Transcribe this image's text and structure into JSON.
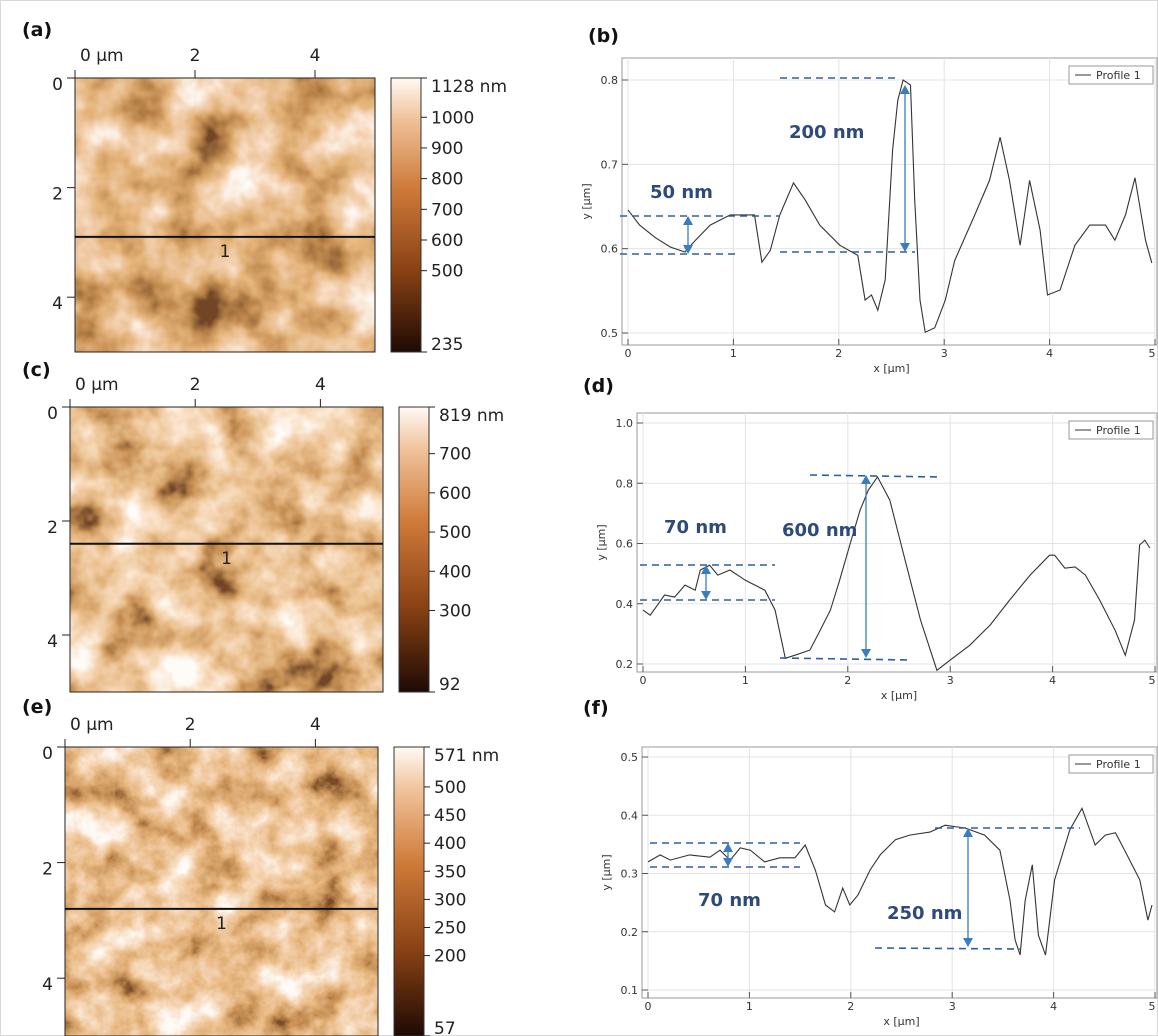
{
  "images": [
    {
      "label": "(a)",
      "xlim": [
        0,
        5
      ],
      "xticks": [
        {
          "value": 0,
          "label": "0 µm"
        },
        2,
        4
      ],
      "ylim": [
        0,
        5
      ],
      "yticks": [
        0,
        2,
        4
      ],
      "profile_y": 2.9,
      "profile_label": "1",
      "clim": [
        235,
        1128
      ],
      "cticks": [
        {
          "value": 1128,
          "label": "1128 nm"
        },
        1000,
        900,
        800,
        700,
        600,
        500,
        235
      ]
    },
    {
      "label": "(c)",
      "xlim": [
        0,
        5
      ],
      "xticks": [
        {
          "value": 0,
          "label": "0 µm"
        },
        2,
        4
      ],
      "ylim": [
        0,
        5
      ],
      "yticks": [
        0,
        2,
        4
      ],
      "profile_y": 2.4,
      "profile_label": "1",
      "clim": [
        92,
        819
      ],
      "cticks": [
        {
          "value": 819,
          "label": "819 nm"
        },
        700,
        600,
        500,
        400,
        300,
        92
      ]
    },
    {
      "label": "(e)",
      "xlim": [
        0,
        5
      ],
      "xticks": [
        {
          "value": 0,
          "label": "0 µm"
        },
        2,
        4
      ],
      "ylim": [
        0,
        5
      ],
      "yticks": [
        0,
        2,
        4
      ],
      "profile_y": 2.8,
      "profile_label": "1",
      "clim": [
        57,
        571
      ],
      "cticks": [
        {
          "value": 571,
          "label": "571 nm"
        },
        500,
        450,
        400,
        350,
        300,
        250,
        200,
        57
      ]
    }
  ],
  "chart_data": [
    {
      "type": "line",
      "label": "(b)",
      "xlabel": "x [µm]",
      "ylabel": "y [µm]",
      "grid": true,
      "legend": "upper right",
      "xlim": [
        0,
        5
      ],
      "xticks": [
        0,
        1,
        2,
        3,
        4,
        5
      ],
      "ylim": [
        0.5,
        0.8
      ],
      "yticks": [
        0.5,
        0.6,
        0.7,
        0.8
      ],
      "annotations": [
        "50 nm",
        "200 nm"
      ],
      "x": [
        0,
        0.11,
        0.26,
        0.4,
        0.54,
        0.64,
        0.78,
        0.97,
        1.2,
        1.27,
        1.35,
        1.44,
        1.57,
        1.68,
        1.82,
        2.01,
        2.18,
        2.25,
        2.31,
        2.37,
        2.44,
        2.51,
        2.56,
        2.61,
        2.68,
        2.72,
        2.77,
        2.82,
        2.91,
        3.01,
        3.1,
        3.29,
        3.43,
        3.53,
        3.62,
        3.72,
        3.81,
        3.91,
        3.98,
        4.1,
        4.24,
        4.38,
        4.53,
        4.62,
        4.72,
        4.81,
        4.91,
        4.97
      ],
      "series": [
        {
          "name": "Profile 1",
          "color": "#333333",
          "values": [
            0.646,
            0.628,
            0.613,
            0.602,
            0.596,
            0.61,
            0.628,
            0.64,
            0.64,
            0.584,
            0.598,
            0.64,
            0.678,
            0.658,
            0.628,
            0.604,
            0.592,
            0.539,
            0.545,
            0.527,
            0.563,
            0.717,
            0.776,
            0.8,
            0.794,
            0.658,
            0.539,
            0.501,
            0.506,
            0.539,
            0.586,
            0.64,
            0.681,
            0.732,
            0.681,
            0.604,
            0.681,
            0.622,
            0.545,
            0.551,
            0.604,
            0.628,
            0.628,
            0.61,
            0.64,
            0.684,
            0.61,
            0.583
          ]
        }
      ]
    },
    {
      "type": "line",
      "label": "(d)",
      "xlabel": "x [µm]",
      "ylabel": "y [µm]",
      "grid": true,
      "legend": "upper right",
      "xlim": [
        0,
        5
      ],
      "xticks": [
        0,
        1,
        2,
        3,
        4,
        5
      ],
      "ylim": [
        0.2,
        1.0
      ],
      "yticks": [
        0.2,
        0.4,
        0.6,
        0.8,
        {
          "value": 1,
          "label": "1.0"
        }
      ],
      "annotations": [
        "70 nm",
        "600 nm"
      ],
      "x": [
        0,
        0.07,
        0.14,
        0.21,
        0.31,
        0.41,
        0.51,
        0.56,
        0.65,
        0.73,
        0.85,
        1.0,
        1.19,
        1.29,
        1.39,
        1.48,
        1.63,
        1.73,
        1.83,
        1.92,
        2.02,
        2.12,
        2.2,
        2.29,
        2.41,
        2.56,
        2.71,
        2.87,
        3.0,
        3.19,
        3.39,
        3.58,
        3.78,
        3.97,
        4.02,
        4.12,
        4.22,
        4.32,
        4.46,
        4.61,
        4.71,
        4.8,
        4.85,
        4.9,
        4.95
      ],
      "series": [
        {
          "name": "Profile 1",
          "color": "#333333",
          "values": [
            0.379,
            0.362,
            0.395,
            0.429,
            0.422,
            0.462,
            0.445,
            0.512,
            0.528,
            0.495,
            0.512,
            0.478,
            0.445,
            0.379,
            0.219,
            0.229,
            0.246,
            0.312,
            0.379,
            0.478,
            0.595,
            0.711,
            0.777,
            0.821,
            0.744,
            0.545,
            0.346,
            0.179,
            0.213,
            0.262,
            0.329,
            0.412,
            0.495,
            0.561,
            0.561,
            0.518,
            0.522,
            0.495,
            0.412,
            0.312,
            0.229,
            0.346,
            0.595,
            0.611,
            0.585
          ]
        }
      ]
    },
    {
      "type": "line",
      "label": "(f)",
      "xlabel": "x [µm]",
      "ylabel": "y [µm]",
      "grid": true,
      "legend": "upper right",
      "xlim": [
        0,
        5
      ],
      "xticks": [
        0,
        1,
        2,
        3,
        4,
        5
      ],
      "ylim": [
        0.1,
        0.5
      ],
      "yticks": [
        0.1,
        0.2,
        0.3,
        0.4,
        0.5
      ],
      "annotations": [
        "70 nm",
        "250 nm"
      ],
      "x": [
        0,
        0.12,
        0.22,
        0.41,
        0.61,
        0.71,
        0.81,
        0.91,
        1.01,
        1.15,
        1.3,
        1.45,
        1.55,
        1.65,
        1.75,
        1.84,
        1.92,
        1.99,
        2.07,
        2.19,
        2.29,
        2.44,
        2.58,
        2.78,
        2.93,
        3.13,
        3.32,
        3.47,
        3.57,
        3.62,
        3.67,
        3.72,
        3.79,
        3.85,
        3.92,
        4.01,
        4.16,
        4.28,
        4.41,
        4.51,
        4.61,
        4.7,
        4.85,
        4.93,
        4.97
      ],
      "series": [
        {
          "name": "Profile 1",
          "color": "#333333",
          "values": [
            0.32,
            0.332,
            0.323,
            0.332,
            0.328,
            0.34,
            0.323,
            0.344,
            0.34,
            0.32,
            0.327,
            0.327,
            0.349,
            0.306,
            0.246,
            0.234,
            0.275,
            0.246,
            0.263,
            0.306,
            0.332,
            0.358,
            0.366,
            0.371,
            0.383,
            0.378,
            0.366,
            0.34,
            0.254,
            0.186,
            0.16,
            0.254,
            0.315,
            0.194,
            0.16,
            0.289,
            0.375,
            0.412,
            0.349,
            0.366,
            0.37,
            0.34,
            0.289,
            0.22,
            0.246
          ]
        }
      ]
    }
  ]
}
